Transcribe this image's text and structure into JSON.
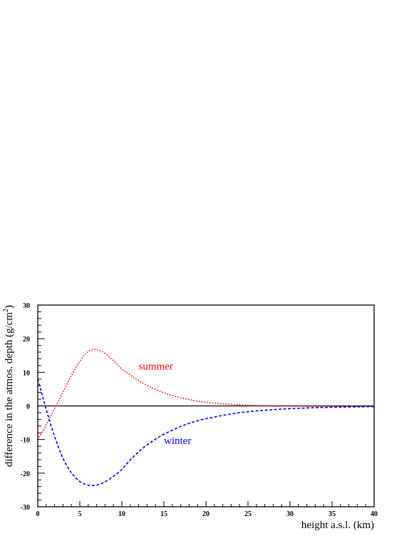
{
  "chart_data": {
    "type": "line",
    "title": "",
    "xlabel": "height a.s.l. (km)",
    "ylabel_parts": [
      "difference in the atmos. depth (g/cm",
      "2",
      ")"
    ],
    "xlim": [
      0,
      40
    ],
    "ylim": [
      -30,
      30
    ],
    "xticks": [
      0,
      5,
      10,
      15,
      20,
      25,
      30,
      35,
      40
    ],
    "yticks": [
      -30,
      -20,
      -10,
      0,
      10,
      20,
      30
    ],
    "grid": false,
    "legend": "none",
    "zero_line": true,
    "series": [
      {
        "name": "summer",
        "color": "#ff0000",
        "style": "dotted",
        "x": [
          0,
          0.5,
          1,
          1.5,
          2,
          2.5,
          3,
          3.5,
          4,
          4.5,
          5,
          5.5,
          6,
          6.5,
          7,
          7.5,
          8,
          8.5,
          9,
          9.5,
          10,
          11,
          12,
          13,
          14,
          15,
          16,
          17,
          18,
          19,
          20,
          22,
          24,
          26,
          28,
          30,
          33,
          36,
          40
        ],
        "y": [
          -10,
          -7.9,
          -5.6,
          -3.2,
          -0.8,
          1.6,
          4.1,
          6.6,
          9.0,
          11.3,
          13.3,
          15.0,
          16.2,
          16.8,
          16.8,
          16.4,
          15.6,
          14.6,
          13.5,
          12.2,
          10.9,
          9.2,
          7.5,
          6.1,
          4.9,
          3.9,
          3.1,
          2.4,
          1.9,
          1.4,
          1.1,
          0.6,
          0.3,
          0.1,
          0.0,
          -0.05,
          -0.1,
          -0.15,
          -0.2
        ]
      },
      {
        "name": "winter",
        "color": "#0000ff",
        "style": "dashed",
        "x": [
          0,
          0.5,
          1,
          1.5,
          2,
          2.5,
          3,
          3.5,
          4,
          4.5,
          5,
          5.5,
          6,
          6.5,
          7,
          7.5,
          8,
          8.5,
          9,
          9.5,
          10,
          11,
          12,
          13,
          14,
          15,
          16,
          17,
          18,
          19,
          20,
          22,
          24,
          26,
          28,
          30,
          33,
          36,
          40
        ],
        "y": [
          8,
          3.5,
          -1.0,
          -5.2,
          -9.1,
          -12.6,
          -15.6,
          -18.0,
          -19.9,
          -21.4,
          -22.5,
          -23.2,
          -23.6,
          -23.7,
          -23.6,
          -23.2,
          -22.6,
          -21.8,
          -20.9,
          -20.0,
          -18.9,
          -16.0,
          -13.6,
          -11.6,
          -9.9,
          -8.4,
          -7.2,
          -6.1,
          -5.2,
          -4.4,
          -3.8,
          -2.8,
          -2.0,
          -1.5,
          -1.1,
          -0.8,
          -0.5,
          -0.35,
          -0.2
        ]
      }
    ],
    "annotations": [
      {
        "text": "summer",
        "color": "#ff0000",
        "x": 12,
        "y": 10.8
      },
      {
        "text": "winter",
        "color": "#0000ff",
        "x": 15,
        "y": -11.3
      }
    ]
  }
}
